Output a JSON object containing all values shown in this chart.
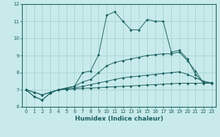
{
  "xlabel": "Humidex (Indice chaleur)",
  "ylabel": "",
  "xlim": [
    -0.5,
    23.5
  ],
  "ylim": [
    6,
    12
  ],
  "yticks": [
    6,
    7,
    8,
    9,
    10,
    11,
    12
  ],
  "xticks": [
    0,
    1,
    2,
    3,
    4,
    5,
    6,
    7,
    8,
    9,
    10,
    11,
    12,
    13,
    14,
    15,
    16,
    17,
    18,
    19,
    20,
    21,
    22,
    23
  ],
  "bg_color": "#c8eaea",
  "grid_color": "#9ecece",
  "line_color": "#1a6060",
  "line1_x": [
    0,
    1,
    2,
    3,
    4,
    5,
    6,
    7,
    8,
    9,
    10,
    11,
    12,
    13,
    14,
    15,
    16,
    17,
    18,
    19,
    20,
    21,
    22,
    23
  ],
  "line1_y": [
    7.0,
    6.6,
    6.4,
    6.8,
    7.0,
    7.1,
    7.2,
    8.0,
    8.1,
    9.05,
    11.35,
    11.55,
    11.0,
    10.5,
    10.5,
    11.1,
    11.0,
    11.0,
    9.2,
    9.3,
    8.8,
    7.9,
    7.4,
    7.4
  ],
  "line2_x": [
    0,
    1,
    2,
    3,
    4,
    5,
    6,
    7,
    8,
    9,
    10,
    11,
    12,
    13,
    14,
    15,
    16,
    17,
    18,
    19,
    20,
    21,
    22,
    23
  ],
  "line2_y": [
    7.0,
    6.6,
    6.4,
    6.8,
    7.0,
    7.1,
    7.2,
    7.45,
    7.6,
    8.0,
    8.4,
    8.6,
    8.7,
    8.8,
    8.9,
    9.0,
    9.05,
    9.1,
    9.1,
    9.2,
    8.7,
    8.1,
    7.4,
    7.4
  ],
  "line3_x": [
    0,
    1,
    2,
    3,
    4,
    5,
    6,
    7,
    8,
    9,
    10,
    11,
    12,
    13,
    14,
    15,
    16,
    17,
    18,
    19,
    20,
    21,
    22,
    23
  ],
  "line3_y": [
    7.0,
    6.85,
    6.7,
    6.85,
    7.0,
    7.05,
    7.1,
    7.2,
    7.3,
    7.4,
    7.5,
    7.6,
    7.7,
    7.75,
    7.8,
    7.85,
    7.9,
    7.95,
    8.0,
    8.05,
    7.9,
    7.7,
    7.5,
    7.4
  ],
  "line4_x": [
    0,
    1,
    2,
    3,
    4,
    5,
    6,
    7,
    8,
    9,
    10,
    11,
    12,
    13,
    14,
    15,
    16,
    17,
    18,
    19,
    20,
    21,
    22,
    23
  ],
  "line4_y": [
    7.0,
    6.85,
    6.7,
    6.85,
    7.0,
    7.02,
    7.05,
    7.08,
    7.1,
    7.12,
    7.15,
    7.18,
    7.2,
    7.22,
    7.25,
    7.28,
    7.3,
    7.33,
    7.35,
    7.38,
    7.38,
    7.38,
    7.38,
    7.38
  ]
}
